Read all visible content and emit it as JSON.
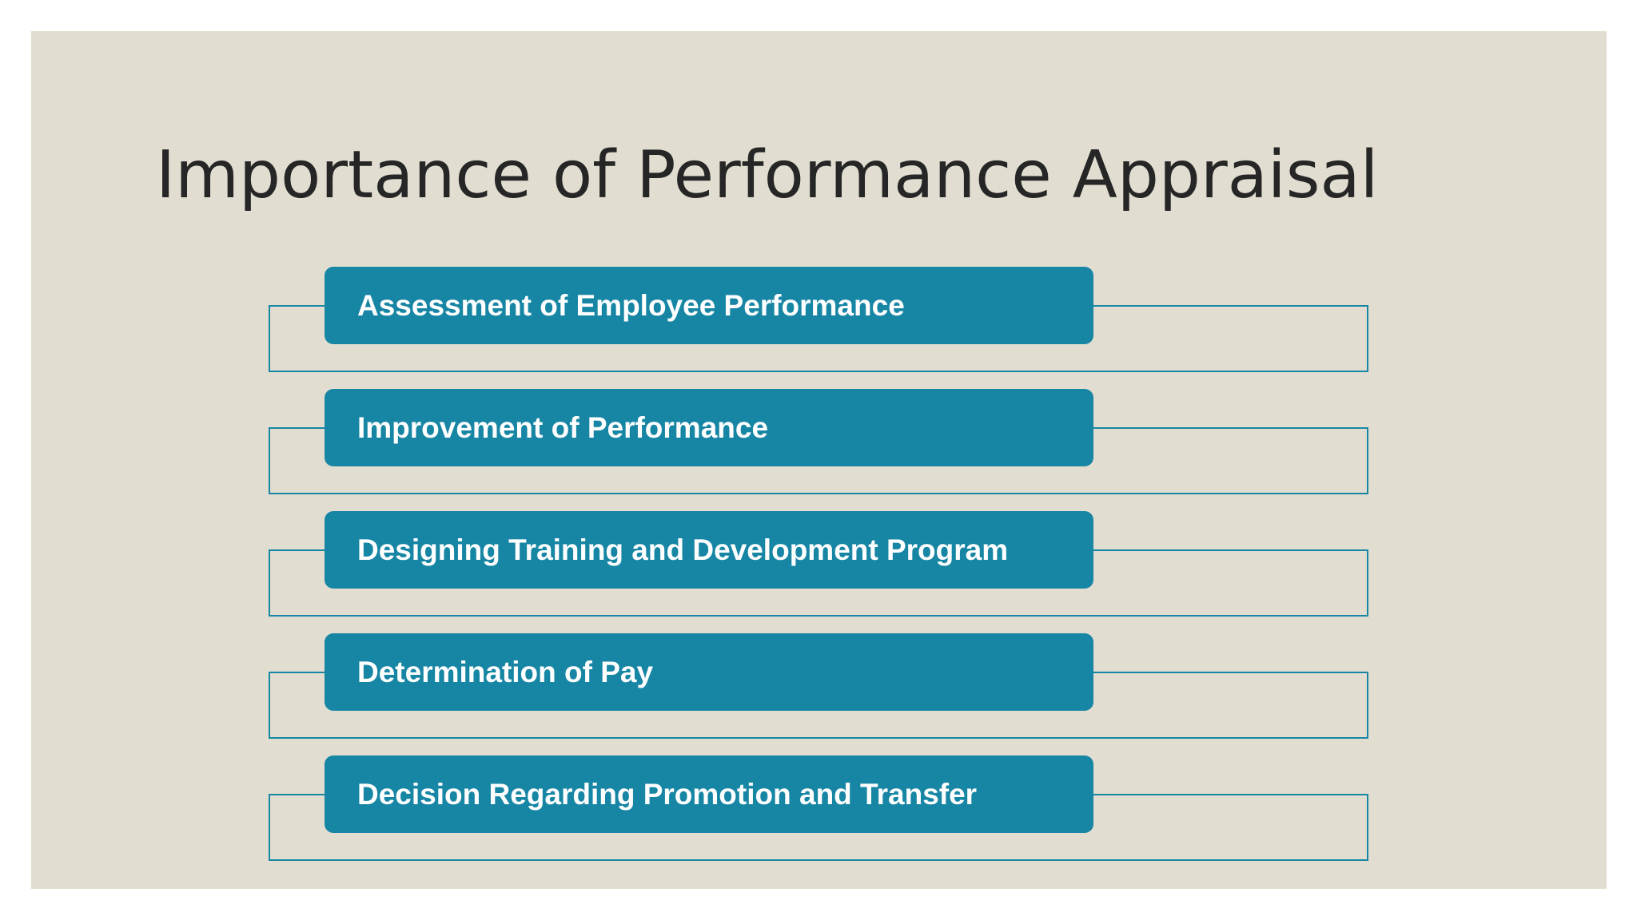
{
  "slide": {
    "title": "Importance of Performance Appraisal",
    "background_color": "#e1ded1",
    "accent_color": "#1786a4"
  },
  "items": [
    {
      "label": "Assessment of Employee Performance"
    },
    {
      "label": "Improvement of Performance"
    },
    {
      "label": "Designing Training and Development Program"
    },
    {
      "label": "Determination of Pay"
    },
    {
      "label": "Decision Regarding Promotion and Transfer"
    }
  ]
}
